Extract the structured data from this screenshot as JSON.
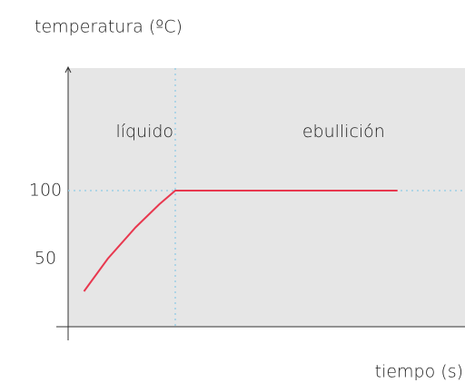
{
  "chart_data": {
    "type": "line",
    "ylabel": "temperatura (ºC)",
    "xlabel": "tiempo (s)",
    "annotations": [
      {
        "text": "líquido",
        "x": 12,
        "y": 143
      },
      {
        "text": "ebullición",
        "x": 59,
        "y": 143
      }
    ],
    "x": [
      4,
      10,
      17,
      23,
      27,
      83
    ],
    "values": [
      26,
      50,
      73,
      90,
      100,
      100
    ],
    "color": "#e8384f",
    "reference_lines": {
      "x": 27,
      "y": 100,
      "color": "#9ccfe6"
    },
    "xlim": [
      0,
      100
    ],
    "ylim": [
      0,
      190
    ],
    "yticks": [
      50,
      100
    ]
  }
}
